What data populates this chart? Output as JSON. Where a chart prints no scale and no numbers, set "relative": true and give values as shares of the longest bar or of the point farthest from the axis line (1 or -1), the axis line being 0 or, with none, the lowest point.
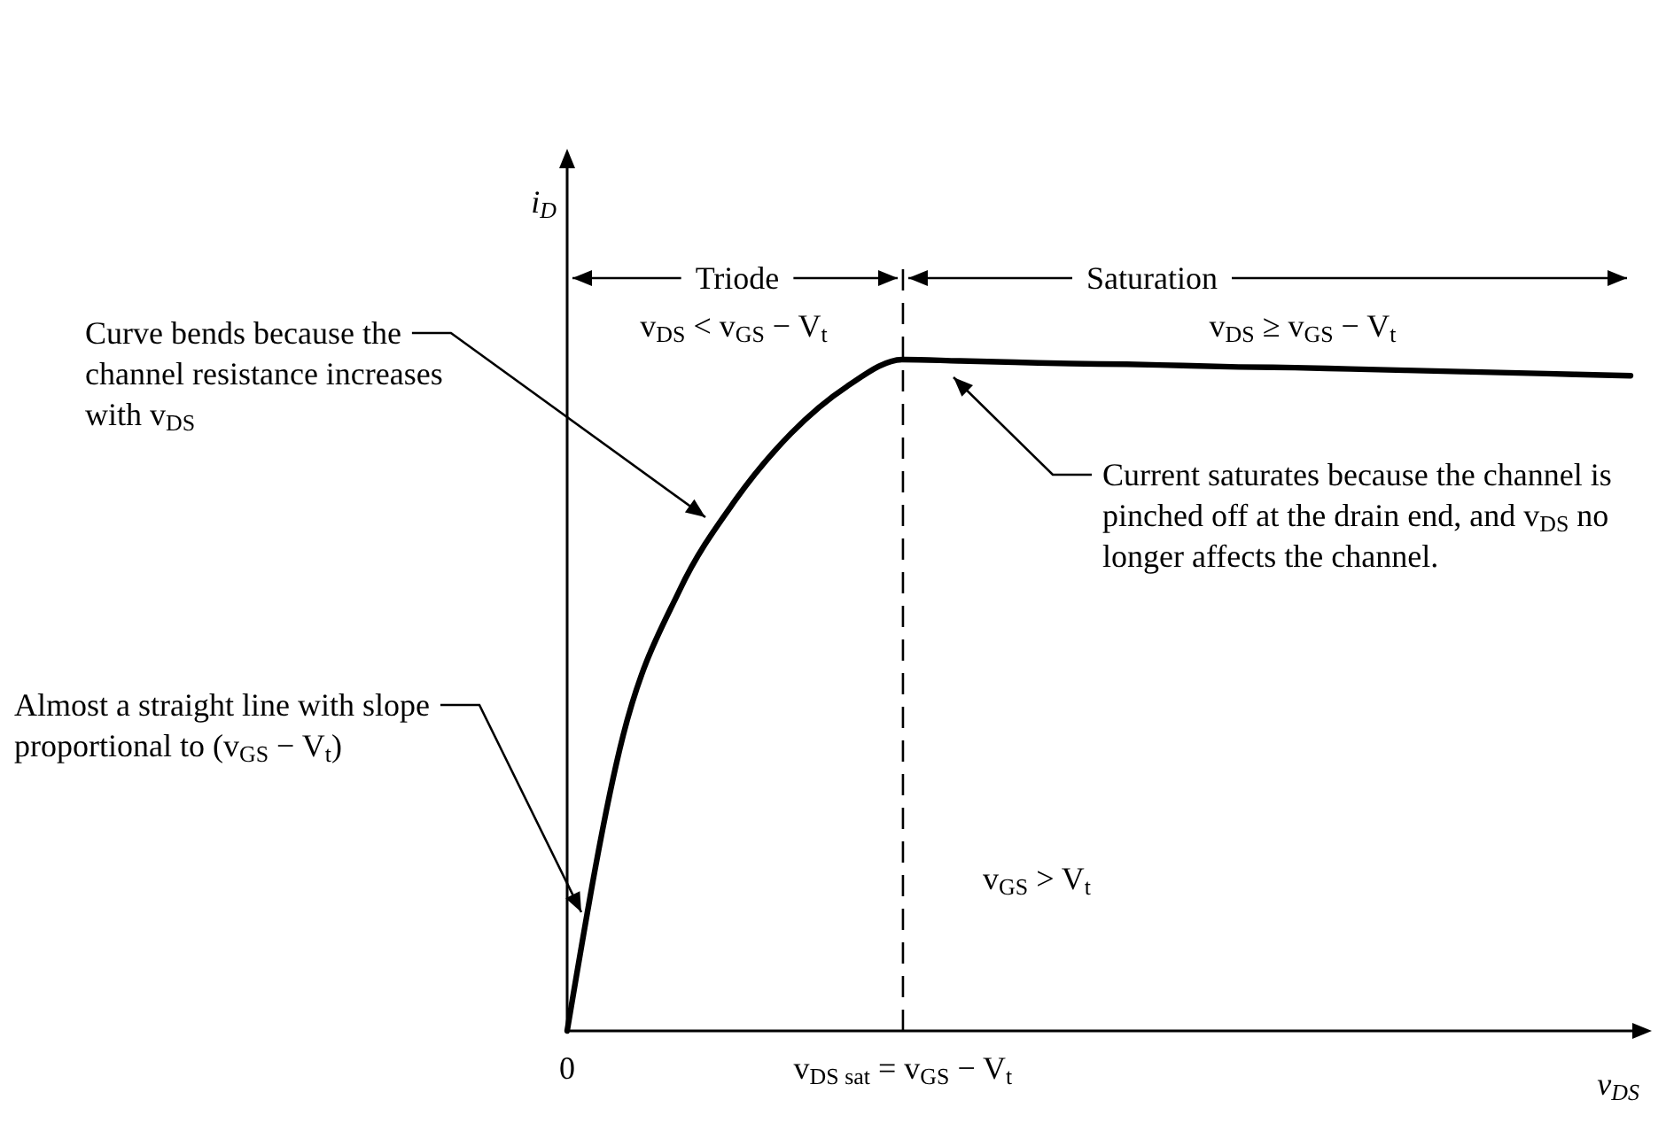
{
  "chart_data": {
    "type": "line",
    "relative": true,
    "xlabel": "v$_{DS}$",
    "ylabel": "i$_{D}$",
    "categories": [
      "0",
      null,
      null,
      null,
      null,
      null,
      "v$_{DS sat}$ = v$_{GS}$ − V$_{t}$",
      null,
      null,
      null,
      null,
      null,
      null,
      null,
      null,
      null,
      null,
      null,
      null,
      null
    ],
    "series": [
      {
        "color": "#000000",
        "values": [
          0,
          0.44,
          0.655,
          0.79,
          0.89,
          0.96,
          1,
          0.998,
          0.996,
          0.994,
          0.993,
          0.991,
          0.989,
          0.988,
          0.986,
          0.984,
          0.982,
          0.98,
          0.978,
          0.976
        ]
      }
    ],
    "ref_lines": [
      {
        "axis": "x",
        "value": "v$_{DS sat}$ = v$_{GS}$ − V$_{t}$",
        "color": "#000000",
        "line_style": "dashed"
      }
    ],
    "annotations": [
      "Triode",
      "Saturation",
      "v$_{DS}$ < v$_{GS}$ − V$_{t}$",
      "v$_{DS}$ ≥ v$_{GS}$ − V$_{t}$",
      "Curve bends because the channel resistance increases with v$_{DS}$",
      "Almost a straight line with slope proportional to (v$_{GS}$ − V$_{t}$)",
      "Current saturates because the channel is pinched off at the drain end, and v$_{DS}$ no longer affects the channel.",
      "v$_{GS}$ > V$_{t}$"
    ],
    "marker": "none",
    "line_style": "solid"
  }
}
